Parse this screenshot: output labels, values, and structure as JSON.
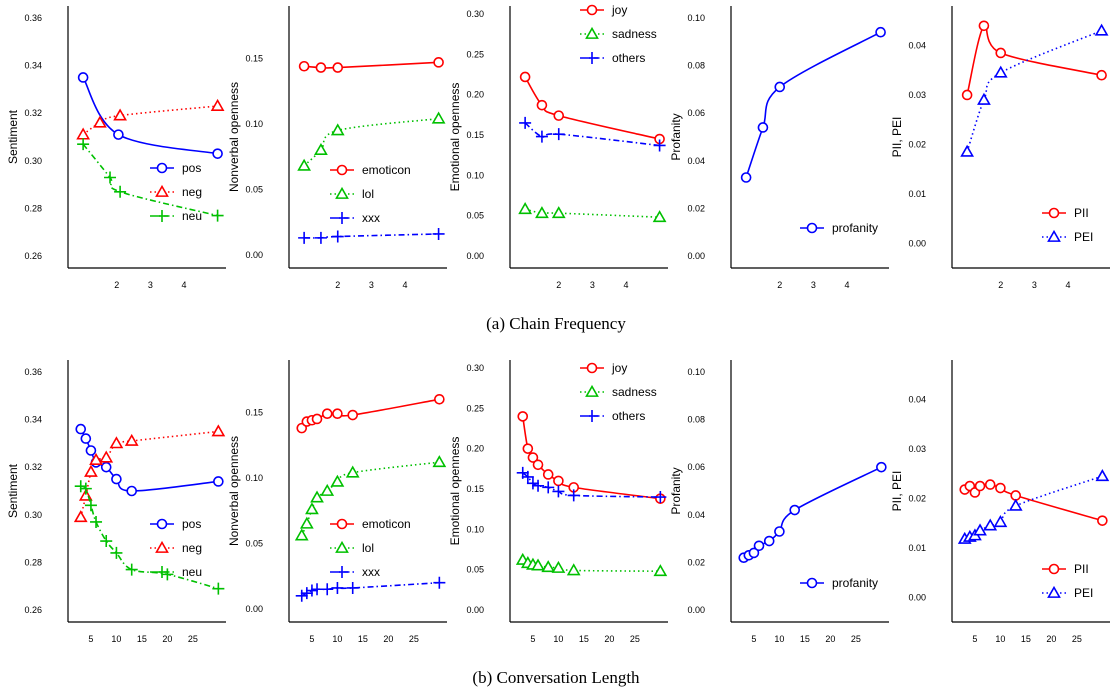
{
  "colors": {
    "red": "#ff0000",
    "green": "#00c000",
    "blue": "#0000ff"
  },
  "captions": {
    "a": "(a)  Chain Frequency",
    "b": "(b)  Conversation Length"
  },
  "chart_data": [
    {
      "id": "a1",
      "type": "line",
      "ylabel": "Sentiment",
      "xlim": [
        0.55,
        5.25
      ],
      "ylim": [
        0.255,
        0.365
      ],
      "xticks": [
        2,
        3,
        4
      ],
      "xtick_labels": [
        "2",
        "3",
        "4"
      ],
      "yticks": [
        0.26,
        0.28,
        0.3,
        0.32,
        0.34,
        0.36
      ],
      "ytick_labels": [
        "0.26",
        "0.28",
        "0.30",
        "0.32",
        "0.34",
        "0.36"
      ],
      "legend_position": "bottom-right",
      "series": [
        {
          "name": "pos",
          "color": "blue",
          "marker": "circle",
          "dash": "solid",
          "x": [
            1.0,
            2.05,
            5.0
          ],
          "y": [
            0.335,
            0.311,
            0.303
          ]
        },
        {
          "name": "neg",
          "color": "red",
          "marker": "triangle",
          "dash": "dotted",
          "x": [
            1.0,
            1.5,
            2.1,
            5.0
          ],
          "y": [
            0.311,
            0.316,
            0.319,
            0.323
          ]
        },
        {
          "name": "neu",
          "color": "green",
          "marker": "plus",
          "dash": "dashdot",
          "x": [
            1.0,
            1.8,
            2.1,
            5.0
          ],
          "y": [
            0.307,
            0.293,
            0.287,
            0.277
          ]
        }
      ]
    },
    {
      "id": "a2",
      "type": "line",
      "ylabel": "Nonverbal openness",
      "xlim": [
        0.55,
        5.25
      ],
      "ylim": [
        -0.01,
        0.19
      ],
      "xticks": [
        2,
        3,
        4
      ],
      "xtick_labels": [
        "2",
        "3",
        "4"
      ],
      "yticks": [
        0.0,
        0.05,
        0.1,
        0.15
      ],
      "ytick_labels": [
        "0.00",
        "0.05",
        "0.10",
        "0.15"
      ],
      "legend_position": "center-right",
      "series": [
        {
          "name": "emoticon",
          "color": "red",
          "marker": "circle",
          "dash": "solid",
          "x": [
            1.0,
            1.5,
            2.0,
            5.0
          ],
          "y": [
            0.144,
            0.143,
            0.143,
            0.147
          ]
        },
        {
          "name": "lol",
          "color": "green",
          "marker": "triangle",
          "dash": "dotted",
          "x": [
            1.0,
            1.5,
            2.0,
            5.0
          ],
          "y": [
            0.068,
            0.08,
            0.095,
            0.104
          ]
        },
        {
          "name": "xxx",
          "color": "blue",
          "marker": "plus",
          "dash": "dashdot",
          "x": [
            1.0,
            1.5,
            2.0,
            5.0
          ],
          "y": [
            0.013,
            0.013,
            0.014,
            0.016
          ]
        }
      ]
    },
    {
      "id": "a3",
      "type": "line",
      "ylabel": "Emotional openness",
      "xlim": [
        0.55,
        5.25
      ],
      "ylim": [
        -0.015,
        0.31
      ],
      "xticks": [
        2,
        3,
        4
      ],
      "xtick_labels": [
        "2",
        "3",
        "4"
      ],
      "yticks": [
        0.0,
        0.05,
        0.1,
        0.15,
        0.2,
        0.25,
        0.3
      ],
      "ytick_labels": [
        "0.00",
        "0.05",
        "0.10",
        "0.15",
        "0.20",
        "0.25",
        "0.30"
      ],
      "legend_position": "top-right",
      "series": [
        {
          "name": "joy",
          "color": "red",
          "marker": "circle",
          "dash": "solid",
          "x": [
            1.0,
            1.5,
            2.0,
            5.0
          ],
          "y": [
            0.222,
            0.187,
            0.174,
            0.145
          ]
        },
        {
          "name": "sadness",
          "color": "green",
          "marker": "triangle",
          "dash": "dotted",
          "x": [
            1.0,
            1.5,
            2.0,
            5.0
          ],
          "y": [
            0.058,
            0.053,
            0.053,
            0.048
          ]
        },
        {
          "name": "others",
          "color": "blue",
          "marker": "plus",
          "dash": "dashdot",
          "x": [
            1.0,
            1.5,
            2.0,
            5.0
          ],
          "y": [
            0.165,
            0.148,
            0.151,
            0.137
          ]
        }
      ]
    },
    {
      "id": "a4",
      "type": "line",
      "ylabel": "Profanity",
      "xlim": [
        0.55,
        5.25
      ],
      "ylim": [
        -0.005,
        0.105
      ],
      "xticks": [
        2,
        3,
        4
      ],
      "xtick_labels": [
        "2",
        "3",
        "4"
      ],
      "yticks": [
        0.0,
        0.02,
        0.04,
        0.06,
        0.08,
        0.1
      ],
      "ytick_labels": [
        "0.00",
        "0.02",
        "0.04",
        "0.06",
        "0.08",
        "0.10"
      ],
      "legend_position": "bottom-right",
      "series": [
        {
          "name": "profanity",
          "color": "blue",
          "marker": "circle",
          "dash": "solid",
          "x": [
            1.0,
            1.5,
            2.0,
            5.0
          ],
          "y": [
            0.033,
            0.054,
            0.071,
            0.094
          ]
        }
      ]
    },
    {
      "id": "a5",
      "type": "line",
      "ylabel": "PII, PEI",
      "xlim": [
        0.55,
        5.25
      ],
      "ylim": [
        -0.005,
        0.048
      ],
      "xticks": [
        2,
        3,
        4
      ],
      "xtick_labels": [
        "2",
        "3",
        "4"
      ],
      "yticks": [
        0.0,
        0.01,
        0.02,
        0.03,
        0.04
      ],
      "ytick_labels": [
        "0.00",
        "0.01",
        "0.02",
        "0.03",
        "0.04"
      ],
      "legend_position": "bottom-right",
      "series": [
        {
          "name": "PII",
          "color": "red",
          "marker": "circle",
          "dash": "solid",
          "x": [
            1.0,
            1.5,
            2.0,
            5.0
          ],
          "y": [
            0.03,
            0.044,
            0.0385,
            0.034
          ]
        },
        {
          "name": "PEI",
          "color": "blue",
          "marker": "triangle",
          "dash": "dotted",
          "x": [
            1.0,
            1.5,
            2.0,
            5.0
          ],
          "y": [
            0.0185,
            0.029,
            0.0345,
            0.043
          ]
        }
      ]
    },
    {
      "id": "b1",
      "type": "line",
      "ylabel": "Sentiment",
      "xlim": [
        0.5,
        31.5
      ],
      "ylim": [
        0.255,
        0.365
      ],
      "xticks": [
        5,
        10,
        15,
        20,
        25
      ],
      "xtick_labels": [
        "5",
        "10",
        "15",
        "20",
        "25"
      ],
      "yticks": [
        0.26,
        0.28,
        0.3,
        0.32,
        0.34,
        0.36
      ],
      "ytick_labels": [
        "0.26",
        "0.28",
        "0.30",
        "0.32",
        "0.34",
        "0.36"
      ],
      "legend_position": "bottom-right",
      "series": [
        {
          "name": "pos",
          "color": "blue",
          "marker": "circle",
          "dash": "solid",
          "x": [
            3,
            4,
            5,
            6,
            8,
            10,
            13,
            30
          ],
          "y": [
            0.336,
            0.332,
            0.327,
            0.322,
            0.32,
            0.315,
            0.31,
            0.314
          ]
        },
        {
          "name": "neg",
          "color": "red",
          "marker": "triangle",
          "dash": "dotted",
          "x": [
            3,
            4,
            5,
            6,
            8,
            10,
            13,
            30
          ],
          "y": [
            0.299,
            0.308,
            0.318,
            0.323,
            0.324,
            0.33,
            0.331,
            0.335
          ]
        },
        {
          "name": "neu",
          "color": "green",
          "marker": "plus",
          "dash": "dashdot",
          "x": [
            3,
            4,
            5,
            6,
            8,
            10,
            13,
            20,
            30
          ],
          "y": [
            0.312,
            0.311,
            0.304,
            0.297,
            0.289,
            0.284,
            0.277,
            0.275,
            0.269
          ]
        }
      ]
    },
    {
      "id": "b2",
      "type": "line",
      "ylabel": "Nonverbal openness",
      "xlim": [
        0.5,
        31.5
      ],
      "ylim": [
        -0.01,
        0.19
      ],
      "xticks": [
        5,
        10,
        15,
        20,
        25
      ],
      "xtick_labels": [
        "5",
        "10",
        "15",
        "20",
        "25"
      ],
      "yticks": [
        0.0,
        0.05,
        0.1,
        0.15
      ],
      "ytick_labels": [
        "0.00",
        "0.05",
        "0.10",
        "0.15"
      ],
      "legend_position": "center-right",
      "series": [
        {
          "name": "emoticon",
          "color": "red",
          "marker": "circle",
          "dash": "solid",
          "x": [
            3,
            4,
            5,
            6,
            8,
            10,
            13,
            30
          ],
          "y": [
            0.138,
            0.143,
            0.144,
            0.145,
            0.149,
            0.149,
            0.148,
            0.16
          ]
        },
        {
          "name": "lol",
          "color": "green",
          "marker": "triangle",
          "dash": "dotted",
          "x": [
            3,
            4,
            5,
            6,
            8,
            10,
            13,
            30
          ],
          "y": [
            0.056,
            0.065,
            0.076,
            0.085,
            0.09,
            0.097,
            0.104,
            0.112
          ]
        },
        {
          "name": "xxx",
          "color": "blue",
          "marker": "plus",
          "dash": "dashdot",
          "x": [
            3,
            4,
            5,
            6,
            8,
            10,
            13,
            30
          ],
          "y": [
            0.01,
            0.012,
            0.014,
            0.015,
            0.015,
            0.016,
            0.016,
            0.02
          ]
        }
      ]
    },
    {
      "id": "b3",
      "type": "line",
      "ylabel": "Emotional openness",
      "xlim": [
        0.5,
        31.5
      ],
      "ylim": [
        -0.015,
        0.31
      ],
      "xticks": [
        5,
        10,
        15,
        20,
        25
      ],
      "xtick_labels": [
        "5",
        "10",
        "15",
        "20",
        "25"
      ],
      "yticks": [
        0.0,
        0.05,
        0.1,
        0.15,
        0.2,
        0.25,
        0.3
      ],
      "ytick_labels": [
        "0.00",
        "0.05",
        "0.10",
        "0.15",
        "0.20",
        "0.25",
        "0.30"
      ],
      "legend_position": "top-right",
      "series": [
        {
          "name": "joy",
          "color": "red",
          "marker": "circle",
          "dash": "solid",
          "x": [
            3,
            4,
            5,
            6,
            8,
            10,
            13,
            30
          ],
          "y": [
            0.24,
            0.2,
            0.189,
            0.18,
            0.168,
            0.16,
            0.152,
            0.138
          ]
        },
        {
          "name": "sadness",
          "color": "green",
          "marker": "triangle",
          "dash": "dotted",
          "x": [
            3,
            4,
            5,
            6,
            8,
            10,
            13,
            30
          ],
          "y": [
            0.062,
            0.058,
            0.056,
            0.055,
            0.053,
            0.052,
            0.049,
            0.048
          ]
        },
        {
          "name": "others",
          "color": "blue",
          "marker": "plus",
          "dash": "dashdot",
          "x": [
            3,
            4,
            5,
            6,
            8,
            10,
            13,
            30
          ],
          "y": [
            0.17,
            0.165,
            0.157,
            0.154,
            0.152,
            0.147,
            0.142,
            0.14
          ]
        }
      ]
    },
    {
      "id": "b4",
      "type": "line",
      "ylabel": "Profanity",
      "xlim": [
        0.5,
        31.5
      ],
      "ylim": [
        -0.005,
        0.105
      ],
      "xticks": [
        5,
        10,
        15,
        20,
        25
      ],
      "xtick_labels": [
        "5",
        "10",
        "15",
        "20",
        "25"
      ],
      "yticks": [
        0.0,
        0.02,
        0.04,
        0.06,
        0.08,
        0.1
      ],
      "ytick_labels": [
        "0.00",
        "0.02",
        "0.04",
        "0.06",
        "0.08",
        "0.10"
      ],
      "legend_position": "bottom-right",
      "series": [
        {
          "name": "profanity",
          "color": "blue",
          "marker": "circle",
          "dash": "solid",
          "x": [
            3,
            4,
            5,
            6,
            8,
            10,
            13,
            30
          ],
          "y": [
            0.022,
            0.023,
            0.024,
            0.027,
            0.029,
            0.033,
            0.042,
            0.06
          ]
        }
      ]
    },
    {
      "id": "b5",
      "type": "line",
      "ylabel": "PII, PEI",
      "xlim": [
        0.5,
        31.5
      ],
      "ylim": [
        -0.005,
        0.048
      ],
      "xticks": [
        5,
        10,
        15,
        20,
        25
      ],
      "xtick_labels": [
        "5",
        "10",
        "15",
        "20",
        "25"
      ],
      "yticks": [
        0.0,
        0.01,
        0.02,
        0.03,
        0.04
      ],
      "ytick_labels": [
        "0.00",
        "0.01",
        "0.02",
        "0.03",
        "0.04"
      ],
      "legend_position": "bottom-right",
      "series": [
        {
          "name": "PII",
          "color": "red",
          "marker": "circle",
          "dash": "solid",
          "x": [
            3,
            4,
            5,
            6,
            8,
            10,
            13,
            30
          ],
          "y": [
            0.0218,
            0.0225,
            0.0212,
            0.0225,
            0.0228,
            0.0221,
            0.0206,
            0.0155
          ]
        },
        {
          "name": "PEI",
          "color": "blue",
          "marker": "triangle",
          "dash": "dotted",
          "x": [
            3,
            4,
            5,
            6,
            8,
            10,
            13,
            30
          ],
          "y": [
            0.0118,
            0.0122,
            0.0125,
            0.0135,
            0.0145,
            0.0152,
            0.0185,
            0.0245
          ]
        }
      ]
    }
  ]
}
